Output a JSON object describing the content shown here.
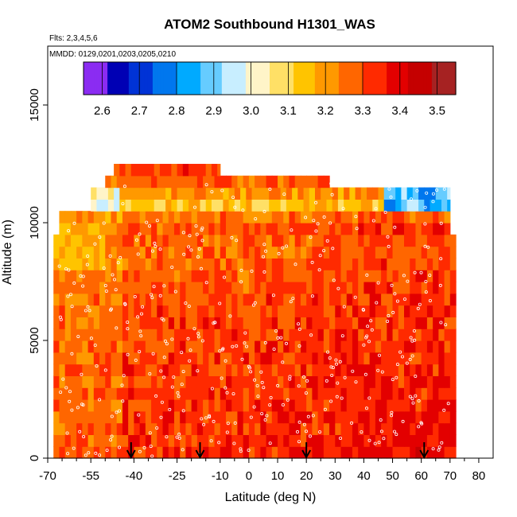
{
  "chart_data": {
    "type": "heatmap",
    "title": "ATOM2 Southbound H1301_WAS",
    "flights_text": "Flts: 2,3,4,5,6",
    "dates_text": "MMDD: 0129,0201,0203,0205,0210",
    "xlabel": "Latitude (deg N)",
    "ylabel": "Altitude (m)",
    "xlim": [
      -70,
      85
    ],
    "ylim": [
      0,
      17500
    ],
    "x_ticks": [
      -70,
      -55,
      -40,
      -25,
      -10,
      0,
      10,
      20,
      30,
      40,
      50,
      60,
      70,
      80
    ],
    "x_minor_ticks": [
      -65,
      -60,
      -50,
      -45,
      -35,
      -30,
      -20,
      -15,
      -5,
      5,
      15,
      25,
      35,
      45,
      55,
      65,
      75
    ],
    "y_ticks": [
      0,
      5000,
      10000,
      15000
    ],
    "grid": false,
    "colorbar": {
      "placement": "top",
      "range": [
        2.55,
        3.55
      ],
      "ticks": [
        "2.6",
        "2.7",
        "2.8",
        "2.9",
        "3.0",
        "3.1",
        "3.2",
        "3.3",
        "3.4",
        "3.5"
      ],
      "tick_values": [
        2.6,
        2.7,
        2.8,
        2.9,
        3.0,
        3.1,
        3.2,
        3.3,
        3.4,
        3.5
      ],
      "colors": [
        "#8b2cf2",
        "#0000b4",
        "#0033d6",
        "#0077ee",
        "#00aaff",
        "#66ccff",
        "#c8eeff",
        "#fff4c8",
        "#ffe066",
        "#ffc400",
        "#ff9900",
        "#ff6600",
        "#ff2a00",
        "#e30000",
        "#c50000",
        "#a62222"
      ]
    },
    "flight_marker_latitudes": [
      -41,
      -17,
      20,
      61
    ],
    "heatmap_extent": {
      "lat_min": -70,
      "lat_max": 72,
      "alt_max": 12500
    },
    "profile_by_altitude": [
      {
        "alt": 250,
        "value": 3.34
      },
      {
        "alt": 1000,
        "value": 3.33
      },
      {
        "alt": 2000,
        "value": 3.33
      },
      {
        "alt": 3000,
        "value": 3.32
      },
      {
        "alt": 4000,
        "value": 3.32
      },
      {
        "alt": 5000,
        "value": 3.31
      },
      {
        "alt": 6000,
        "value": 3.31
      },
      {
        "alt": 7000,
        "value": 3.3
      },
      {
        "alt": 8000,
        "value": 3.28
      },
      {
        "alt": 9000,
        "value": 3.26
      },
      {
        "alt": 10000,
        "value": 3.3
      },
      {
        "alt": 10800,
        "value": 3.12
      },
      {
        "alt": 11500,
        "value": 3.25
      },
      {
        "alt": 12200,
        "value": 3.32
      }
    ]
  }
}
